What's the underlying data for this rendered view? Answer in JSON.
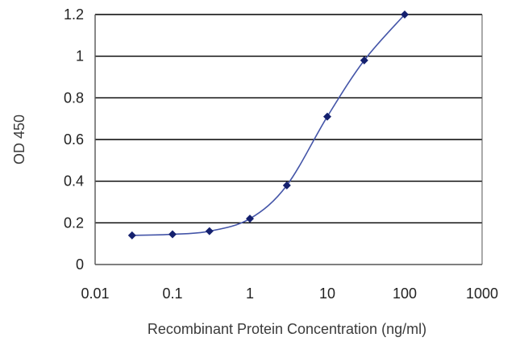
{
  "chart_data": {
    "type": "line",
    "title": "",
    "xlabel": "Recombinant Protein Concentration (ng/ml)",
    "ylabel": "OD 450",
    "xscale": "log",
    "xlim": [
      0.01,
      1000
    ],
    "ylim": [
      0,
      1.2
    ],
    "grid": "horizontal",
    "legend": "none",
    "x_ticks": [
      0.01,
      0.1,
      1,
      10,
      100,
      1000
    ],
    "x_tick_labels": [
      "0.01",
      "0.1",
      "1",
      "10",
      "100",
      "1000"
    ],
    "y_ticks": [
      0,
      0.2,
      0.4,
      0.6,
      0.8,
      1,
      1.2
    ],
    "y_tick_labels": [
      "0",
      "0.2",
      "0.4",
      "0.6",
      "0.8",
      "1",
      "1.2"
    ],
    "series": [
      {
        "x": [
          0.03,
          0.1,
          0.3,
          1,
          3,
          10,
          30,
          100
        ],
        "y": [
          0.14,
          0.145,
          0.16,
          0.22,
          0.38,
          0.71,
          0.98,
          1.2
        ]
      }
    ],
    "colors": {
      "line": "#4455a8",
      "marker": "#14206e",
      "grid": "#000000",
      "axis": "#555555"
    }
  }
}
